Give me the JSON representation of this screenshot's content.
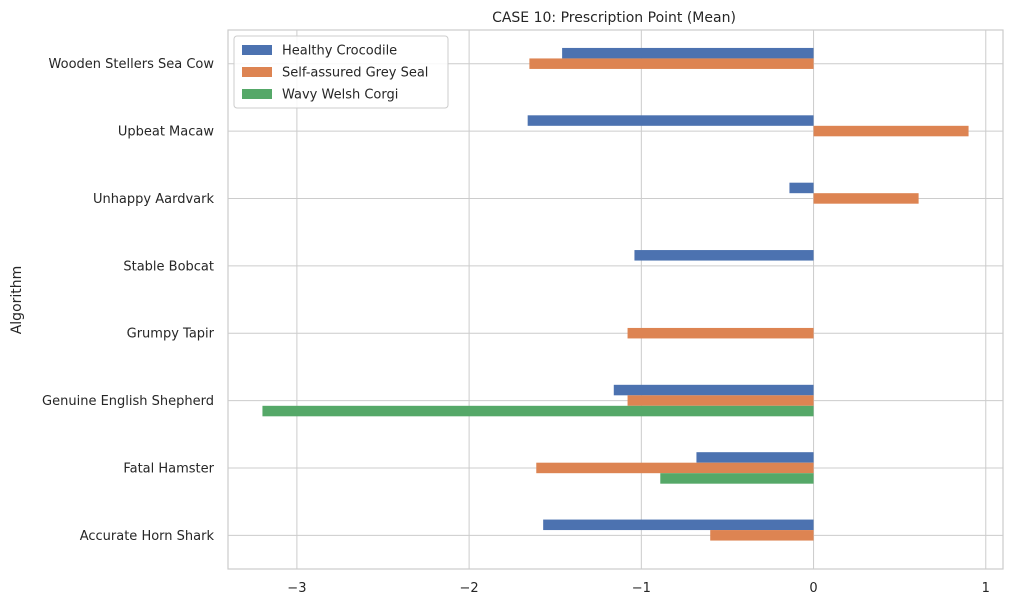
{
  "chart_data": {
    "type": "bar",
    "orientation": "horizontal",
    "title": "CASE 10: Prescription Point (Mean)",
    "xlabel": "",
    "ylabel": "Algorithm",
    "categories": [
      "Accurate Horn Shark",
      "Fatal Hamster",
      "Genuine English Shepherd",
      "Grumpy Tapir",
      "Stable Bobcat",
      "Unhappy Aardvark",
      "Upbeat Macaw",
      "Wooden Stellers Sea Cow"
    ],
    "series": [
      {
        "name": "Healthy Crocodile",
        "color": "#4c72b0",
        "values": [
          -1.57,
          -0.68,
          -1.16,
          0,
          -1.04,
          -0.14,
          -1.66,
          -1.46
        ]
      },
      {
        "name": "Self-assured Grey Seal",
        "color": "#dd8452",
        "values": [
          -0.6,
          -1.61,
          -1.08,
          -1.08,
          0,
          0.61,
          0.9,
          -1.65
        ]
      },
      {
        "name": "Wavy Welsh Corgi",
        "color": "#55a868",
        "values": [
          0,
          -0.89,
          -3.2,
          0,
          0,
          0,
          0,
          0
        ]
      }
    ],
    "xlim": [
      -3.4,
      1.1
    ],
    "xticks": [
      -3,
      -2,
      -1,
      0,
      1
    ],
    "xtick_labels": [
      "−3",
      "−2",
      "−1",
      "0",
      "1"
    ],
    "grid": true,
    "legend_position": "top-left"
  }
}
